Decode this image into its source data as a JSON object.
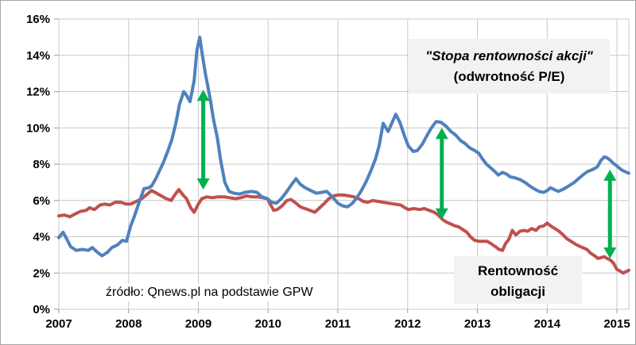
{
  "frame": {
    "background": "#ffffff",
    "border_color": "#a6a6a6",
    "gridline_color": "#c8c8c8",
    "tick_color": "#999999",
    "label_color": "#000000"
  },
  "annotations": {
    "akcje_label_line1": "\"Stopa rentowności akcji\"",
    "akcje_label_line2": "(odwrotność P/E)",
    "obligacje_label_line1": "Rentowność",
    "obligacje_label_line2": "obligacji",
    "source_text": "źródło: Qnews.pl na podstawie GPW"
  },
  "chart_data": {
    "type": "line",
    "title": "",
    "xlabel": "",
    "ylabel": "",
    "grid": true,
    "legend_position": "none",
    "x_axis": {
      "tick_labels": [
        "2007",
        "2008",
        "2009",
        "2010",
        "2011",
        "2012",
        "2013",
        "2014",
        "2015"
      ],
      "tick_values": [
        2007,
        2008,
        2009,
        2010,
        2011,
        2012,
        2013,
        2014,
        2015
      ],
      "range": [
        2007,
        2015.17
      ]
    },
    "y_axis": {
      "tick_labels": [
        "0%",
        "2%",
        "4%",
        "6%",
        "8%",
        "10%",
        "12%",
        "14%",
        "16%"
      ],
      "tick_values": [
        0,
        2,
        4,
        6,
        8,
        10,
        12,
        14,
        16
      ],
      "range": [
        0,
        16
      ],
      "unit": "%"
    },
    "series": [
      {
        "name": "Stopa rentowności akcji (odwrotność P/E)",
        "color": "#4F81BD",
        "points": [
          [
            2007.0,
            3.95
          ],
          [
            2007.06,
            4.25
          ],
          [
            2007.11,
            3.9
          ],
          [
            2007.17,
            3.45
          ],
          [
            2007.25,
            3.25
          ],
          [
            2007.34,
            3.3
          ],
          [
            2007.42,
            3.25
          ],
          [
            2007.48,
            3.4
          ],
          [
            2007.55,
            3.15
          ],
          [
            2007.62,
            2.95
          ],
          [
            2007.7,
            3.15
          ],
          [
            2007.76,
            3.4
          ],
          [
            2007.84,
            3.55
          ],
          [
            2007.91,
            3.8
          ],
          [
            2007.97,
            3.75
          ],
          [
            2008.03,
            4.6
          ],
          [
            2008.08,
            5.1
          ],
          [
            2008.16,
            6.0
          ],
          [
            2008.22,
            6.65
          ],
          [
            2008.29,
            6.7
          ],
          [
            2008.33,
            6.8
          ],
          [
            2008.39,
            7.2
          ],
          [
            2008.45,
            7.7
          ],
          [
            2008.5,
            8.1
          ],
          [
            2008.56,
            8.7
          ],
          [
            2008.62,
            9.35
          ],
          [
            2008.68,
            10.3
          ],
          [
            2008.73,
            11.3
          ],
          [
            2008.79,
            12.0
          ],
          [
            2008.83,
            11.8
          ],
          [
            2008.88,
            11.45
          ],
          [
            2008.94,
            12.6
          ],
          [
            2008.98,
            14.3
          ],
          [
            2009.02,
            15.0
          ],
          [
            2009.05,
            14.2
          ],
          [
            2009.1,
            13.0
          ],
          [
            2009.17,
            11.6
          ],
          [
            2009.22,
            10.4
          ],
          [
            2009.27,
            9.5
          ],
          [
            2009.32,
            8.2
          ],
          [
            2009.38,
            7.0
          ],
          [
            2009.44,
            6.5
          ],
          [
            2009.51,
            6.4
          ],
          [
            2009.59,
            6.35
          ],
          [
            2009.67,
            6.45
          ],
          [
            2009.76,
            6.5
          ],
          [
            2009.84,
            6.45
          ],
          [
            2009.91,
            6.2
          ],
          [
            2009.99,
            6.1
          ],
          [
            2010.05,
            5.9
          ],
          [
            2010.12,
            5.85
          ],
          [
            2010.19,
            6.1
          ],
          [
            2010.27,
            6.5
          ],
          [
            2010.34,
            6.9
          ],
          [
            2010.4,
            7.2
          ],
          [
            2010.46,
            6.9
          ],
          [
            2010.53,
            6.7
          ],
          [
            2010.61,
            6.55
          ],
          [
            2010.69,
            6.4
          ],
          [
            2010.77,
            6.45
          ],
          [
            2010.84,
            6.5
          ],
          [
            2010.92,
            6.2
          ],
          [
            2011.0,
            5.85
          ],
          [
            2011.07,
            5.7
          ],
          [
            2011.14,
            5.65
          ],
          [
            2011.21,
            5.85
          ],
          [
            2011.27,
            6.15
          ],
          [
            2011.33,
            6.5
          ],
          [
            2011.4,
            7.0
          ],
          [
            2011.47,
            7.6
          ],
          [
            2011.54,
            8.3
          ],
          [
            2011.59,
            9.0
          ],
          [
            2011.65,
            10.25
          ],
          [
            2011.72,
            9.8
          ],
          [
            2011.79,
            10.4
          ],
          [
            2011.83,
            10.75
          ],
          [
            2011.89,
            10.3
          ],
          [
            2011.95,
            9.6
          ],
          [
            2012.01,
            9.0
          ],
          [
            2012.08,
            8.7
          ],
          [
            2012.14,
            8.75
          ],
          [
            2012.21,
            9.1
          ],
          [
            2012.28,
            9.6
          ],
          [
            2012.34,
            10.0
          ],
          [
            2012.41,
            10.35
          ],
          [
            2012.48,
            10.3
          ],
          [
            2012.55,
            10.1
          ],
          [
            2012.62,
            9.8
          ],
          [
            2012.69,
            9.6
          ],
          [
            2012.76,
            9.3
          ],
          [
            2012.82,
            9.15
          ],
          [
            2012.89,
            8.9
          ],
          [
            2012.96,
            8.75
          ],
          [
            2013.02,
            8.6
          ],
          [
            2013.07,
            8.3
          ],
          [
            2013.13,
            8.0
          ],
          [
            2013.19,
            7.8
          ],
          [
            2013.25,
            7.6
          ],
          [
            2013.3,
            7.4
          ],
          [
            2013.36,
            7.55
          ],
          [
            2013.42,
            7.45
          ],
          [
            2013.47,
            7.3
          ],
          [
            2013.54,
            7.25
          ],
          [
            2013.61,
            7.15
          ],
          [
            2013.68,
            7.0
          ],
          [
            2013.75,
            6.8
          ],
          [
            2013.81,
            6.65
          ],
          [
            2013.88,
            6.5
          ],
          [
            2013.95,
            6.45
          ],
          [
            2014.0,
            6.55
          ],
          [
            2014.05,
            6.7
          ],
          [
            2014.1,
            6.6
          ],
          [
            2014.16,
            6.5
          ],
          [
            2014.22,
            6.6
          ],
          [
            2014.27,
            6.7
          ],
          [
            2014.33,
            6.85
          ],
          [
            2014.39,
            7.0
          ],
          [
            2014.45,
            7.2
          ],
          [
            2014.51,
            7.4
          ],
          [
            2014.58,
            7.6
          ],
          [
            2014.65,
            7.7
          ],
          [
            2014.72,
            7.85
          ],
          [
            2014.77,
            8.2
          ],
          [
            2014.82,
            8.4
          ],
          [
            2014.86,
            8.35
          ],
          [
            2014.91,
            8.2
          ],
          [
            2014.95,
            8.05
          ],
          [
            2015.0,
            7.9
          ],
          [
            2015.06,
            7.7
          ],
          [
            2015.11,
            7.6
          ],
          [
            2015.17,
            7.5
          ]
        ]
      },
      {
        "name": "Rentowność obligacji",
        "color": "#C0504D",
        "points": [
          [
            2007.0,
            5.15
          ],
          [
            2007.08,
            5.2
          ],
          [
            2007.16,
            5.1
          ],
          [
            2007.23,
            5.25
          ],
          [
            2007.31,
            5.4
          ],
          [
            2007.39,
            5.45
          ],
          [
            2007.44,
            5.6
          ],
          [
            2007.51,
            5.5
          ],
          [
            2007.59,
            5.75
          ],
          [
            2007.66,
            5.8
          ],
          [
            2007.73,
            5.75
          ],
          [
            2007.81,
            5.9
          ],
          [
            2007.89,
            5.9
          ],
          [
            2007.96,
            5.8
          ],
          [
            2008.03,
            5.8
          ],
          [
            2008.11,
            5.95
          ],
          [
            2008.19,
            6.1
          ],
          [
            2008.27,
            6.35
          ],
          [
            2008.33,
            6.55
          ],
          [
            2008.4,
            6.4
          ],
          [
            2008.47,
            6.25
          ],
          [
            2008.54,
            6.1
          ],
          [
            2008.61,
            6.0
          ],
          [
            2008.66,
            6.3
          ],
          [
            2008.72,
            6.6
          ],
          [
            2008.78,
            6.3
          ],
          [
            2008.83,
            6.1
          ],
          [
            2008.89,
            5.6
          ],
          [
            2008.94,
            5.35
          ],
          [
            2009.0,
            5.8
          ],
          [
            2009.05,
            6.1
          ],
          [
            2009.12,
            6.2
          ],
          [
            2009.2,
            6.15
          ],
          [
            2009.28,
            6.2
          ],
          [
            2009.37,
            6.2
          ],
          [
            2009.45,
            6.15
          ],
          [
            2009.53,
            6.1
          ],
          [
            2009.61,
            6.15
          ],
          [
            2009.69,
            6.25
          ],
          [
            2009.77,
            6.2
          ],
          [
            2009.85,
            6.2
          ],
          [
            2009.92,
            6.15
          ],
          [
            2009.99,
            6.1
          ],
          [
            2010.03,
            5.8
          ],
          [
            2010.08,
            5.45
          ],
          [
            2010.13,
            5.5
          ],
          [
            2010.2,
            5.7
          ],
          [
            2010.27,
            6.0
          ],
          [
            2010.33,
            6.05
          ],
          [
            2010.4,
            5.85
          ],
          [
            2010.46,
            5.65
          ],
          [
            2010.53,
            5.55
          ],
          [
            2010.6,
            5.45
          ],
          [
            2010.67,
            5.35
          ],
          [
            2010.74,
            5.6
          ],
          [
            2010.81,
            5.85
          ],
          [
            2010.87,
            6.1
          ],
          [
            2010.94,
            6.25
          ],
          [
            2011.0,
            6.3
          ],
          [
            2011.08,
            6.3
          ],
          [
            2011.16,
            6.25
          ],
          [
            2011.23,
            6.2
          ],
          [
            2011.3,
            6.1
          ],
          [
            2011.36,
            5.95
          ],
          [
            2011.43,
            5.9
          ],
          [
            2011.5,
            6.0
          ],
          [
            2011.57,
            5.95
          ],
          [
            2011.65,
            5.9
          ],
          [
            2011.73,
            5.85
          ],
          [
            2011.81,
            5.8
          ],
          [
            2011.9,
            5.75
          ],
          [
            2011.96,
            5.6
          ],
          [
            2012.01,
            5.5
          ],
          [
            2012.09,
            5.55
          ],
          [
            2012.17,
            5.5
          ],
          [
            2012.24,
            5.55
          ],
          [
            2012.31,
            5.45
          ],
          [
            2012.38,
            5.35
          ],
          [
            2012.44,
            5.2
          ],
          [
            2012.5,
            4.95
          ],
          [
            2012.56,
            4.8
          ],
          [
            2012.62,
            4.7
          ],
          [
            2012.68,
            4.6
          ],
          [
            2012.73,
            4.55
          ],
          [
            2012.79,
            4.4
          ],
          [
            2012.85,
            4.25
          ],
          [
            2012.9,
            4.0
          ],
          [
            2012.96,
            3.8
          ],
          [
            2013.02,
            3.75
          ],
          [
            2013.09,
            3.75
          ],
          [
            2013.14,
            3.75
          ],
          [
            2013.2,
            3.6
          ],
          [
            2013.26,
            3.45
          ],
          [
            2013.31,
            3.3
          ],
          [
            2013.36,
            3.25
          ],
          [
            2013.4,
            3.6
          ],
          [
            2013.45,
            3.85
          ],
          [
            2013.5,
            4.35
          ],
          [
            2013.55,
            4.1
          ],
          [
            2013.61,
            4.3
          ],
          [
            2013.67,
            4.35
          ],
          [
            2013.72,
            4.3
          ],
          [
            2013.78,
            4.45
          ],
          [
            2013.84,
            4.35
          ],
          [
            2013.89,
            4.55
          ],
          [
            2013.95,
            4.6
          ],
          [
            2014.0,
            4.75
          ],
          [
            2014.05,
            4.6
          ],
          [
            2014.11,
            4.45
          ],
          [
            2014.17,
            4.3
          ],
          [
            2014.23,
            4.1
          ],
          [
            2014.28,
            3.9
          ],
          [
            2014.34,
            3.75
          ],
          [
            2014.4,
            3.6
          ],
          [
            2014.45,
            3.5
          ],
          [
            2014.51,
            3.4
          ],
          [
            2014.57,
            3.3
          ],
          [
            2014.62,
            3.1
          ],
          [
            2014.68,
            2.95
          ],
          [
            2014.73,
            2.8
          ],
          [
            2014.77,
            2.85
          ],
          [
            2014.82,
            2.9
          ],
          [
            2014.86,
            2.8
          ],
          [
            2014.91,
            2.7
          ],
          [
            2014.95,
            2.55
          ],
          [
            2015.0,
            2.2
          ],
          [
            2015.05,
            2.1
          ],
          [
            2015.09,
            2.0
          ],
          [
            2015.14,
            2.1
          ],
          [
            2015.17,
            2.15
          ]
        ]
      }
    ],
    "arrows": [
      {
        "x": 2009.07,
        "from_pct": 6.6,
        "to_pct": 12.1,
        "color": "#00B050"
      },
      {
        "x": 2012.49,
        "from_pct": 4.95,
        "to_pct": 10.0,
        "color": "#00B050"
      },
      {
        "x": 2014.9,
        "from_pct": 2.8,
        "to_pct": 7.7,
        "color": "#00B050"
      }
    ]
  }
}
